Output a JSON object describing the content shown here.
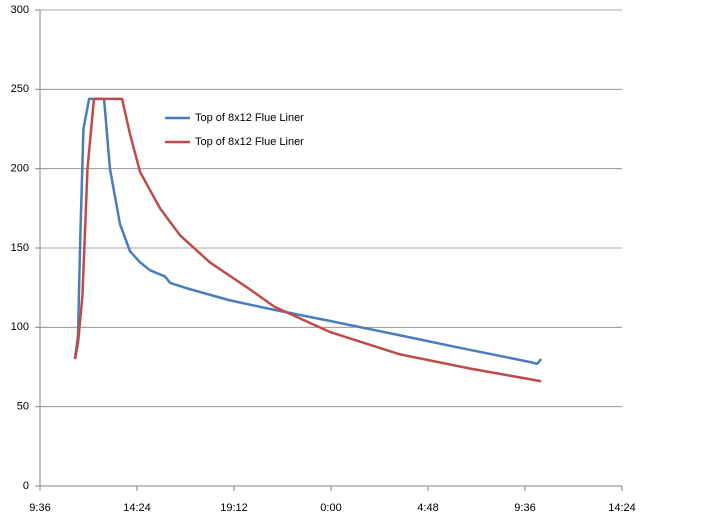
{
  "chart_data": {
    "type": "line",
    "xlim": [
      9.6,
      38.4
    ],
    "xticks": [
      {
        "value": 9.6,
        "label": "9:36"
      },
      {
        "value": 14.4,
        "label": "14:24"
      },
      {
        "value": 19.2,
        "label": "19:12"
      },
      {
        "value": 24,
        "label": "0:00"
      },
      {
        "value": 28.8,
        "label": "4:48"
      },
      {
        "value": 33.6,
        "label": "9:36"
      },
      {
        "value": 38.4,
        "label": "14:24"
      }
    ],
    "ylim": [
      0,
      300
    ],
    "yticks": [
      0,
      50,
      100,
      150,
      200,
      250,
      300
    ],
    "grid": true,
    "series": [
      {
        "name": "Top of 8x12 Flue Liner",
        "color": "#4a7ebb",
        "x": [
          11.33,
          11.48,
          11.6,
          11.75,
          12.03,
          12.77,
          13.06,
          13.56,
          14.05,
          14.55,
          15.04,
          15.79,
          16.04,
          17.03,
          19.0,
          21.2,
          23.96,
          27.4,
          30.4,
          33.9,
          34.2,
          34.4
        ],
        "values": [
          80,
          95,
          160,
          225,
          244,
          244,
          200,
          165,
          148,
          141,
          136,
          132,
          128,
          124,
          117,
          111,
          104,
          95,
          87,
          78,
          77,
          80
        ]
      },
      {
        "name": "Top of 8x12 Flue Liner",
        "color": "#be4b48",
        "x": [
          11.33,
          11.48,
          11.7,
          11.95,
          12.27,
          13.66,
          14.05,
          14.55,
          15.54,
          16.53,
          18.0,
          19.98,
          21.2,
          23.96,
          27.4,
          30.9,
          34.4
        ],
        "values": [
          80,
          90,
          120,
          200,
          244,
          244,
          222,
          198,
          175,
          158,
          141,
          124,
          113,
          97,
          83,
          74,
          66
        ]
      }
    ]
  }
}
